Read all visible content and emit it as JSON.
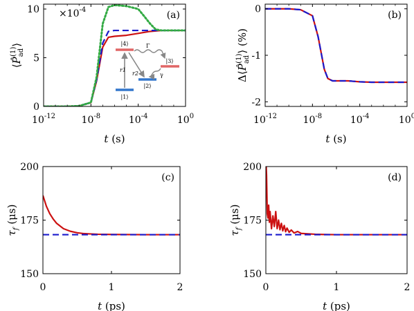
{
  "colors": {
    "red": "#cc1111",
    "blue": "#1a1acc",
    "green": "#33aa44",
    "gray": "#888888",
    "level_red": "#e06666",
    "level_blue": "#3377cc"
  },
  "chart_data": [
    {
      "id": "a",
      "type": "line",
      "panel_label": "(a)",
      "xscale": "log",
      "xlim": [
        1e-12,
        1
      ],
      "ylim": [
        0,
        10.5
      ],
      "xticks": [
        1e-12,
        1e-08,
        0.0001,
        1
      ],
      "xtick_labels": [
        "10^-12",
        "10^-8",
        "10^-4",
        "10^0"
      ],
      "yticks": [
        0,
        5,
        10
      ],
      "ytick_labels": [
        "0",
        "5",
        "10"
      ],
      "multiplier": "×10^-4",
      "xlabel": "t (s)",
      "ylabel": "⟨P̂ad(1)⟩",
      "grid": false,
      "series": [
        {
          "color": "red",
          "style": "solid",
          "x": [
            1e-12,
            1e-10,
            1e-09,
            1e-08,
            3e-08,
            1e-07,
            3e-07,
            1e-06,
            1e-05,
            0.0001,
            0.001,
            0.01,
            0.1,
            1
          ],
          "y": [
            0,
            0,
            0.05,
            0.4,
            2.6,
            6.1,
            7.1,
            7.2,
            7.3,
            7.5,
            7.7,
            7.8,
            7.8,
            7.8
          ]
        },
        {
          "color": "blue",
          "style": "dashed",
          "x": [
            1e-12,
            1e-10,
            1e-09,
            1e-08,
            3e-08,
            1e-07,
            3e-07,
            1e-06,
            0.0001,
            1
          ],
          "y": [
            0,
            0,
            0.05,
            0.4,
            2.7,
            6.5,
            7.7,
            7.8,
            7.8,
            7.8
          ]
        },
        {
          "color": "green",
          "style": "dotted",
          "x": [
            1e-12,
            1e-10,
            1e-09,
            1e-08,
            3e-08,
            1e-07,
            3e-07,
            1e-06,
            1e-05,
            0.0001,
            0.0003,
            0.001,
            0.003,
            0.01,
            0.1,
            1
          ],
          "y": [
            0,
            0,
            0.05,
            0.4,
            3.0,
            8.5,
            10.2,
            10.4,
            10.3,
            10.0,
            9.3,
            8.5,
            7.9,
            7.8,
            7.8,
            7.8
          ]
        }
      ],
      "inset": {
        "levels": [
          "|1⟩",
          "|2⟩",
          "|3⟩",
          "|4⟩"
        ],
        "rates": [
          "r1",
          "r2",
          "Γ",
          "γ"
        ]
      }
    },
    {
      "id": "b",
      "type": "line",
      "panel_label": "(b)",
      "xscale": "log",
      "xlim": [
        1e-12,
        1
      ],
      "ylim": [
        -2.1,
        0.1
      ],
      "xticks": [
        1e-12,
        1e-08,
        0.0001,
        1
      ],
      "xtick_labels": [
        "10^-12",
        "10^-8",
        "10^-4",
        "10^0"
      ],
      "yticks": [
        0,
        -1,
        -2
      ],
      "ytick_labels": [
        "0",
        "-1",
        "-2"
      ],
      "xlabel": "t (s)",
      "ylabel": "Δ⟨P̂ad(1)⟩ (%)",
      "grid": false,
      "series": [
        {
          "color": "red",
          "style": "solid",
          "x": [
            1e-12,
            1e-10,
            1e-09,
            1e-08,
            3e-08,
            1e-07,
            2e-07,
            5e-07,
            1e-06,
            1e-05,
            0.0001,
            0.001,
            1
          ],
          "y": [
            0,
            0,
            -0.02,
            -0.15,
            -0.6,
            -1.3,
            -1.5,
            -1.55,
            -1.55,
            -1.55,
            -1.57,
            -1.58,
            -1.58
          ]
        },
        {
          "color": "blue",
          "style": "dashed",
          "x": [
            1e-12,
            1e-10,
            1e-09,
            1e-08,
            3e-08,
            1e-07,
            2e-07,
            5e-07,
            1e-06,
            1e-05,
            0.0001,
            0.001,
            1
          ],
          "y": [
            0,
            0,
            -0.02,
            -0.15,
            -0.6,
            -1.3,
            -1.5,
            -1.55,
            -1.55,
            -1.55,
            -1.57,
            -1.58,
            -1.58
          ]
        }
      ]
    },
    {
      "id": "c",
      "type": "line",
      "panel_label": "(c)",
      "xscale": "linear",
      "xlim": [
        0,
        2
      ],
      "ylim": [
        150,
        200
      ],
      "xticks": [
        0,
        1,
        2
      ],
      "xtick_labels": [
        "0",
        "1",
        "2"
      ],
      "yticks": [
        150,
        175,
        200
      ],
      "ytick_labels": [
        "150",
        "175",
        "200"
      ],
      "xlabel": "t (ps)",
      "ylabel": "τf (μs)",
      "grid": false,
      "series": [
        {
          "color": "red",
          "style": "solid",
          "x": [
            0,
            0.05,
            0.1,
            0.15,
            0.2,
            0.3,
            0.4,
            0.5,
            0.6,
            0.8,
            1.0,
            1.5,
            2.0
          ],
          "y": [
            186.5,
            181.5,
            178,
            175.5,
            173.5,
            171,
            169.8,
            169.1,
            168.7,
            168.4,
            168.3,
            168.2,
            168.2
          ]
        },
        {
          "color": "blue",
          "style": "dashed",
          "x": [
            0,
            2
          ],
          "y": [
            168.2,
            168.2
          ]
        }
      ]
    },
    {
      "id": "d",
      "type": "line",
      "panel_label": "(d)",
      "xscale": "linear",
      "xlim": [
        0,
        2
      ],
      "ylim": [
        150,
        200
      ],
      "xticks": [
        0,
        1,
        2
      ],
      "xtick_labels": [
        "0",
        "1",
        "2"
      ],
      "yticks": [
        150,
        175,
        200
      ],
      "ytick_labels": [
        "150",
        "175",
        "200"
      ],
      "xlabel": "t (ps)",
      "ylabel": "τf (μs)",
      "grid": false,
      "series": [
        {
          "color": "red",
          "style": "solid",
          "x": [
            0.005,
            0.01,
            0.02,
            0.03,
            0.04,
            0.05,
            0.06,
            0.08,
            0.1,
            0.12,
            0.14,
            0.16,
            0.18,
            0.2,
            0.22,
            0.24,
            0.26,
            0.28,
            0.3,
            0.33,
            0.36,
            0.4,
            0.45,
            0.5,
            0.6,
            0.7,
            0.8,
            1.0,
            1.5,
            2.0
          ],
          "y": [
            200,
            196,
            178,
            176,
            182,
            174,
            179,
            171,
            177,
            172,
            179,
            171,
            175,
            170.5,
            173.5,
            170,
            172.5,
            169.6,
            171.3,
            169.3,
            170.4,
            169,
            169.7,
            168.8,
            168.6,
            168.4,
            168.3,
            168.2,
            168.2,
            168.2
          ]
        },
        {
          "color": "blue",
          "style": "dashed",
          "x": [
            0,
            2
          ],
          "y": [
            168.2,
            168.2
          ]
        }
      ]
    }
  ]
}
